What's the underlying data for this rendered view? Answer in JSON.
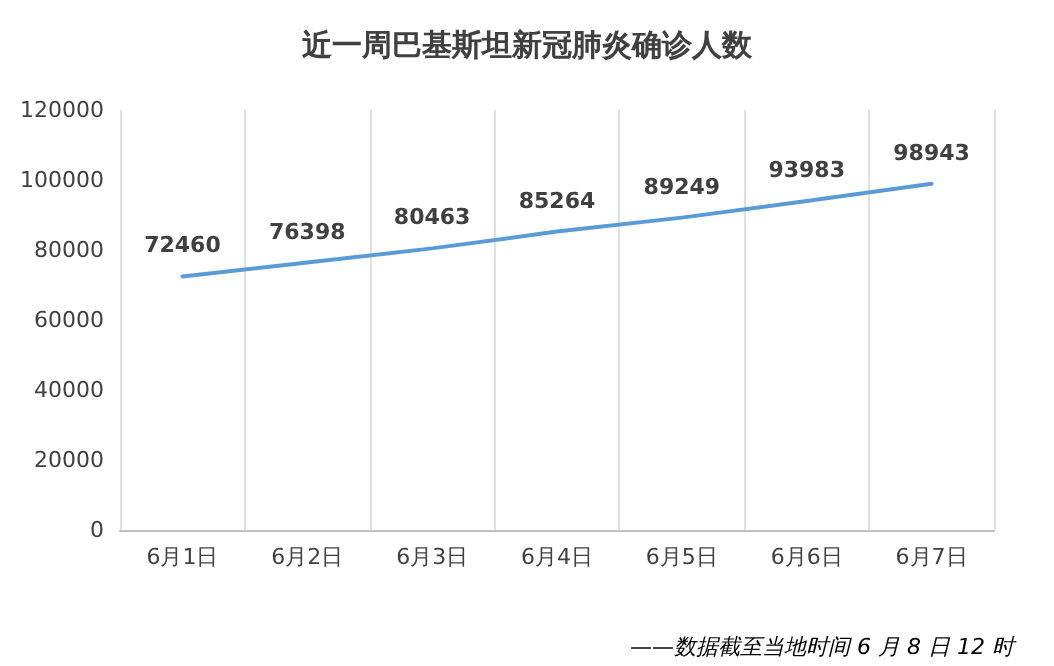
{
  "chart_data": {
    "type": "line",
    "title": "近一周巴基斯坦新冠肺炎确诊人数",
    "categories": [
      "6月1日",
      "6月2日",
      "6月3日",
      "6月4日",
      "6月5日",
      "6月6日",
      "6月7日"
    ],
    "series": [
      {
        "color": "#5b9bd5",
        "values": [
          72460,
          76398,
          80463,
          85264,
          89249,
          93983,
          98943
        ]
      }
    ],
    "ylim": [
      0,
      120000
    ],
    "yticks": [
      0,
      20000,
      40000,
      60000,
      80000,
      100000,
      120000
    ],
    "grid": "x",
    "marker": "none",
    "line_style": "solid",
    "data_labels": true,
    "annotations": [
      "——数据截至当地时间 6 月 8 日 12 时"
    ]
  }
}
